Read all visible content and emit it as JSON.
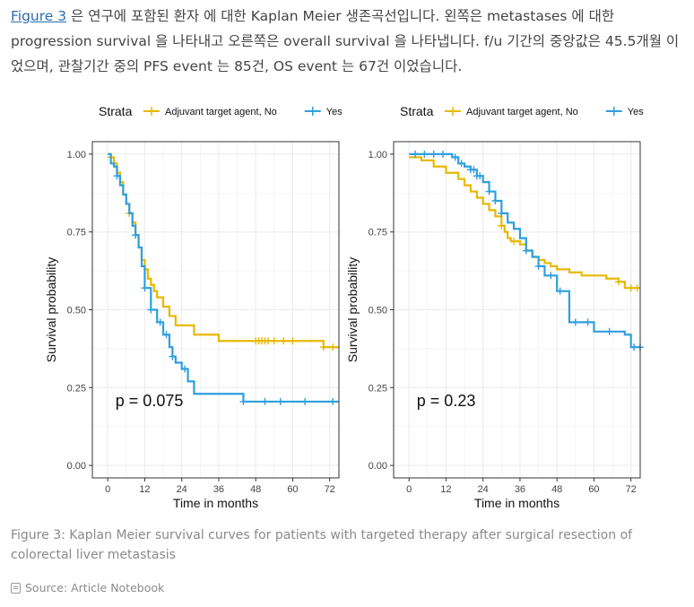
{
  "intro": {
    "link_text": "Figure 3",
    "text": " 은 연구에 포함된 환자 에 대한 Kaplan Meier 생존곡선입니다. 왼쪽은 metastases 에 대한 progression survival 을 나타내고 오른쪽은 overall survival 을 나타냅니다. f/u 기간의 중앙값은 45.5개월 이었으며, 관찰기간 중의 PFS event 는 85건, OS event 는 67건 이었습니다."
  },
  "caption": "Figure 3: Kaplan Meier survival curves for patients with targeted therapy after surgical resection of colorectal liver metastasis",
  "source": "Source: Article Notebook",
  "colors": {
    "no": "#E7B800",
    "yes": "#2E9FDF",
    "grid": "#ebebeb",
    "frame": "#333333"
  },
  "chart_data": [
    {
      "type": "line",
      "subtype": "kaplan-meier",
      "legend_title": "Strata",
      "legend_position": "top",
      "xlabel": "Time in months",
      "ylabel": "Survival probability",
      "xlim": [
        -5,
        75
      ],
      "ylim": [
        -0.04,
        1.04
      ],
      "xticks": [
        0,
        12,
        24,
        36,
        48,
        60,
        72
      ],
      "yticks": [
        0.0,
        0.25,
        0.5,
        0.75,
        1.0
      ],
      "ytick_labels": [
        "0.00",
        "0.25",
        "0.50",
        "0.75",
        "1.00"
      ],
      "grid": true,
      "annotation": "p = 0.075",
      "series": [
        {
          "name": "Adjuvant target agent, No",
          "color_key": "no",
          "x": [
            0,
            1,
            2,
            3,
            4,
            5,
            6,
            7,
            8,
            9,
            10,
            11,
            12,
            13,
            14,
            15,
            16,
            18,
            20,
            22,
            24,
            28,
            36,
            48,
            60,
            70,
            75
          ],
          "y": [
            1.0,
            0.99,
            0.97,
            0.94,
            0.91,
            0.87,
            0.84,
            0.81,
            0.78,
            0.74,
            0.7,
            0.66,
            0.63,
            0.6,
            0.58,
            0.56,
            0.54,
            0.51,
            0.48,
            0.45,
            0.45,
            0.42,
            0.4,
            0.4,
            0.4,
            0.38,
            0.38
          ],
          "censor_x": [
            1,
            7,
            9,
            48,
            49,
            50,
            51,
            52,
            54,
            57,
            60,
            70,
            73
          ]
        },
        {
          "name": "Yes",
          "color_key": "yes",
          "x": [
            0,
            1,
            2,
            3,
            4,
            5,
            6,
            7,
            8,
            9,
            10,
            11,
            12,
            14,
            16,
            18,
            20,
            21,
            22,
            24,
            26,
            28,
            43,
            44,
            75
          ],
          "y": [
            1.0,
            0.97,
            0.96,
            0.93,
            0.9,
            0.87,
            0.84,
            0.81,
            0.77,
            0.74,
            0.7,
            0.64,
            0.57,
            0.5,
            0.46,
            0.42,
            0.38,
            0.35,
            0.33,
            0.31,
            0.27,
            0.23,
            0.23,
            0.205,
            0.205
          ],
          "censor_x": [
            3,
            9,
            12,
            14,
            17,
            19,
            21,
            25,
            44,
            51,
            56,
            64,
            73
          ]
        }
      ]
    },
    {
      "type": "line",
      "subtype": "kaplan-meier",
      "legend_title": "Strata",
      "legend_position": "top",
      "xlabel": "Time in months",
      "ylabel": "Survival probability",
      "xlim": [
        -5,
        75
      ],
      "ylim": [
        -0.04,
        1.04
      ],
      "xticks": [
        0,
        12,
        24,
        36,
        48,
        60,
        72
      ],
      "yticks": [
        0.0,
        0.25,
        0.5,
        0.75,
        1.0
      ],
      "ytick_labels": [
        "0.00",
        "0.25",
        "0.50",
        "0.75",
        "1.00"
      ],
      "grid": true,
      "annotation": "p = 0.23",
      "series": [
        {
          "name": "Adjuvant target agent, No",
          "color_key": "no",
          "x": [
            0,
            4,
            8,
            12,
            16,
            18,
            20,
            22,
            24,
            26,
            28,
            30,
            31,
            32,
            33,
            34,
            36,
            38,
            40,
            42,
            44,
            46,
            48,
            52,
            56,
            60,
            64,
            68,
            70,
            75
          ],
          "y": [
            0.99,
            0.98,
            0.96,
            0.94,
            0.92,
            0.9,
            0.88,
            0.86,
            0.84,
            0.82,
            0.8,
            0.77,
            0.75,
            0.73,
            0.72,
            0.72,
            0.71,
            0.69,
            0.67,
            0.66,
            0.65,
            0.64,
            0.63,
            0.62,
            0.61,
            0.61,
            0.6,
            0.59,
            0.57,
            0.57
          ],
          "censor_x": [
            30,
            34,
            68,
            72,
            74
          ]
        },
        {
          "name": "Yes",
          "color_key": "yes",
          "x": [
            0,
            12,
            14,
            16,
            18,
            20,
            22,
            24,
            26,
            28,
            30,
            32,
            34,
            36,
            38,
            40,
            42,
            44,
            48,
            52,
            56,
            60,
            70,
            72,
            75
          ],
          "y": [
            1.0,
            1.0,
            0.99,
            0.97,
            0.96,
            0.95,
            0.93,
            0.91,
            0.88,
            0.85,
            0.81,
            0.78,
            0.76,
            0.73,
            0.69,
            0.67,
            0.64,
            0.61,
            0.56,
            0.46,
            0.46,
            0.43,
            0.42,
            0.38,
            0.38
          ],
          "censor_x": [
            2,
            5,
            8,
            11,
            15,
            17,
            20,
            21,
            22,
            23,
            26,
            28,
            30,
            38,
            42,
            46,
            49,
            54,
            58,
            65,
            73,
            75
          ]
        }
      ]
    }
  ]
}
